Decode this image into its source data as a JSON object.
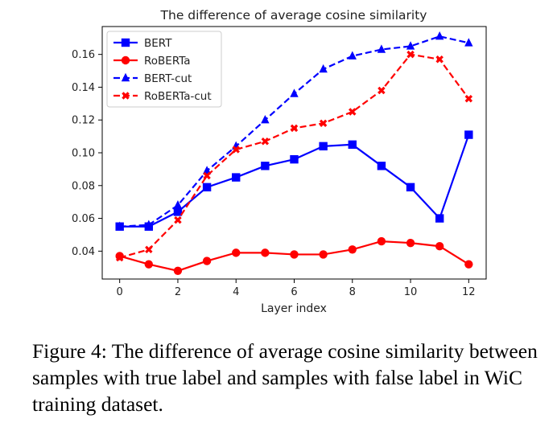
{
  "chart_data": {
    "type": "line",
    "title": "The difference of average cosine similarity",
    "xlabel": "Layer index",
    "ylabel": "",
    "x": [
      0,
      1,
      2,
      3,
      4,
      5,
      6,
      7,
      8,
      9,
      10,
      11,
      12
    ],
    "xlim": [
      -0.6,
      12.6
    ],
    "ylim": [
      0.023,
      0.177
    ],
    "xticks": [
      "0",
      "2",
      "4",
      "6",
      "8",
      "10",
      "12"
    ],
    "yticks": [
      "0.04",
      "0.06",
      "0.08",
      "0.10",
      "0.12",
      "0.14",
      "0.16"
    ],
    "grid": false,
    "legend_position": "top-left",
    "series": [
      {
        "name": "BERT",
        "color": "#0000ff",
        "dash": "solid",
        "marker": "square",
        "values": [
          0.055,
          0.055,
          0.064,
          0.079,
          0.085,
          0.092,
          0.096,
          0.104,
          0.105,
          0.092,
          0.079,
          0.06,
          0.111
        ]
      },
      {
        "name": "RoBERTa",
        "color": "#ff0000",
        "dash": "solid",
        "marker": "circle",
        "values": [
          0.037,
          0.032,
          0.028,
          0.034,
          0.039,
          0.039,
          0.038,
          0.038,
          0.041,
          0.046,
          0.045,
          0.043,
          0.032
        ]
      },
      {
        "name": "BERT-cut",
        "color": "#0000ff",
        "dash": "dashed",
        "marker": "triangle",
        "values": [
          0.055,
          0.056,
          0.068,
          0.089,
          0.104,
          0.12,
          0.136,
          0.151,
          0.159,
          0.163,
          0.165,
          0.171,
          0.167
        ]
      },
      {
        "name": "RoBERTa-cut",
        "color": "#ff0000",
        "dash": "dashed",
        "marker": "x",
        "values": [
          0.036,
          0.041,
          0.059,
          0.086,
          0.102,
          0.107,
          0.115,
          0.118,
          0.125,
          0.138,
          0.16,
          0.157,
          0.133
        ]
      }
    ]
  },
  "caption": "Figure 4: The difference of average cosine similarity between samples with true label and samples with false label in WiC training dataset."
}
